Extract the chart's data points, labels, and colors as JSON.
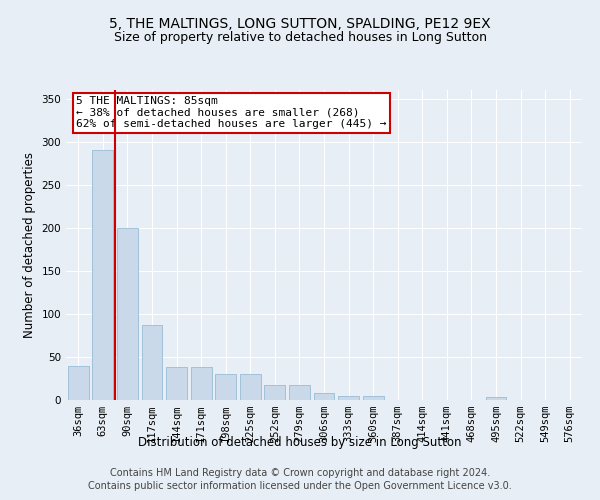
{
  "title": "5, THE MALTINGS, LONG SUTTON, SPALDING, PE12 9EX",
  "subtitle": "Size of property relative to detached houses in Long Sutton",
  "xlabel": "Distribution of detached houses by size in Long Sutton",
  "ylabel": "Number of detached properties",
  "bar_color": "#c9d9ea",
  "bar_edge_color": "#8ab4ce",
  "bar_values": [
    40,
    290,
    200,
    87,
    38,
    38,
    30,
    30,
    17,
    17,
    8,
    5,
    5,
    0,
    0,
    0,
    0,
    3,
    0,
    0,
    0
  ],
  "categories": [
    "36sqm",
    "63sqm",
    "90sqm",
    "117sqm",
    "144sqm",
    "171sqm",
    "198sqm",
    "225sqm",
    "252sqm",
    "279sqm",
    "306sqm",
    "333sqm",
    "360sqm",
    "387sqm",
    "414sqm",
    "441sqm",
    "468sqm",
    "495sqm",
    "522sqm",
    "549sqm",
    "576sqm"
  ],
  "ylim": [
    0,
    360
  ],
  "yticks": [
    0,
    50,
    100,
    150,
    200,
    250,
    300,
    350
  ],
  "property_label": "5 THE MALTINGS: 85sqm",
  "annotation_line1": "← 38% of detached houses are smaller (268)",
  "annotation_line2": "62% of semi-detached houses are larger (445) →",
  "vline_x_index": 2,
  "vline_color": "#cc0000",
  "annotation_box_facecolor": "#ffffff",
  "annotation_box_edgecolor": "#cc0000",
  "footer1": "Contains HM Land Registry data © Crown copyright and database right 2024.",
  "footer2": "Contains public sector information licensed under the Open Government Licence v3.0.",
  "background_color": "#e8eef5",
  "plot_background": "#e8eef5",
  "grid_color": "#ffffff",
  "title_fontsize": 10,
  "subtitle_fontsize": 9,
  "axis_label_fontsize": 8.5,
  "tick_fontsize": 7.5,
  "annotation_fontsize": 8,
  "footer_fontsize": 7
}
